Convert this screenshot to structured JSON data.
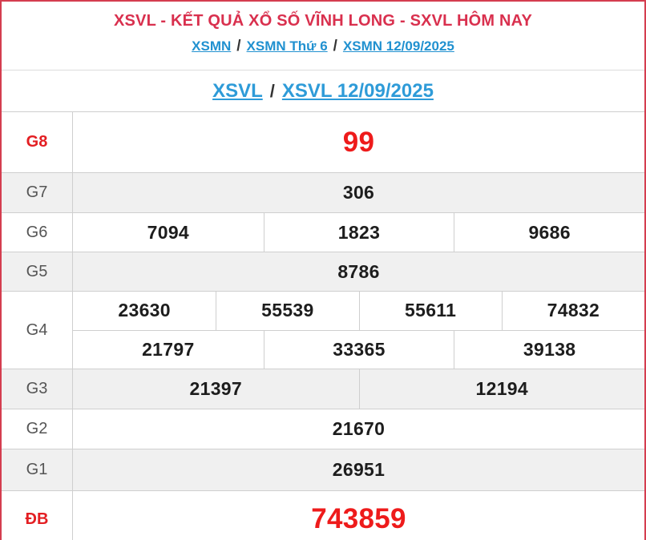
{
  "header": {
    "title": "XSVL - KẾT QUẢ XỔ SỐ VĨNH LONG - SXVL HÔM NAY",
    "separator": "/",
    "breadcrumb": [
      {
        "label": "XSMN"
      },
      {
        "label": "XSMN Thứ 6"
      },
      {
        "label": "XSMN 12/09/2025"
      }
    ]
  },
  "subheader": {
    "separator": "/",
    "links": [
      {
        "label": "XSVL"
      },
      {
        "label": "XSVL 12/09/2025"
      }
    ]
  },
  "table": {
    "rows": [
      {
        "label": "G8",
        "highlight": true,
        "shaded": false,
        "size": "h-g8",
        "lines": [
          [
            "99"
          ]
        ]
      },
      {
        "label": "G7",
        "highlight": false,
        "shaded": true,
        "size": "h-std",
        "lines": [
          [
            "306"
          ]
        ]
      },
      {
        "label": "G6",
        "highlight": false,
        "shaded": false,
        "size": "h-g6",
        "lines": [
          [
            "7094",
            "1823",
            "9686"
          ]
        ]
      },
      {
        "label": "G5",
        "highlight": false,
        "shaded": true,
        "size": "h-g5",
        "lines": [
          [
            "8786"
          ]
        ]
      },
      {
        "label": "G4",
        "highlight": false,
        "shaded": false,
        "size": "h-g4",
        "lines": [
          [
            "23630",
            "55539",
            "55611",
            "74832"
          ],
          [
            "21797",
            "33365",
            "39138"
          ]
        ]
      },
      {
        "label": "G3",
        "highlight": false,
        "shaded": true,
        "size": "h-std",
        "lines": [
          [
            "21397",
            "12194"
          ]
        ]
      },
      {
        "label": "G2",
        "highlight": false,
        "shaded": false,
        "size": "h-std",
        "lines": [
          [
            "21670"
          ]
        ]
      },
      {
        "label": "G1",
        "highlight": false,
        "shaded": true,
        "size": "h-g1",
        "lines": [
          [
            "26951"
          ]
        ]
      },
      {
        "label": "ĐB",
        "highlight": true,
        "shaded": false,
        "size": "h-db",
        "lines": [
          [
            "743859"
          ]
        ]
      }
    ]
  },
  "colors": {
    "title_red": "#d9304e",
    "number_red": "#ee1b1b",
    "label_red": "#e31e22",
    "link_blue": "#2191d0",
    "shaded_row_bg": "#f0f0f0",
    "grid_line": "#cfcfcf",
    "outer_border_red": "#d43d4f"
  }
}
